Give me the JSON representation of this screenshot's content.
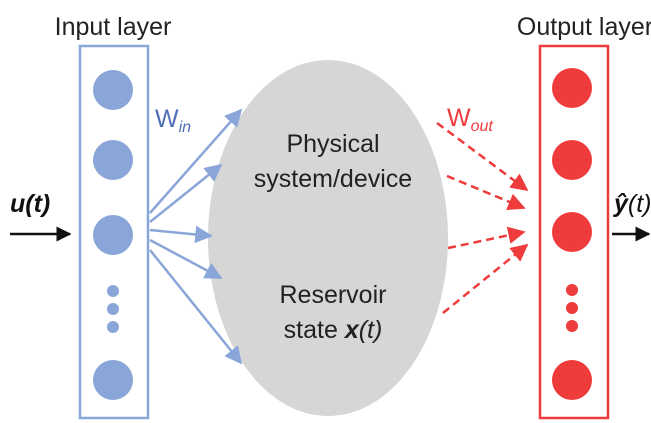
{
  "diagram": {
    "input_label": "Input layer",
    "output_label": "Output layer",
    "w_in": {
      "base": "W",
      "sub": "in"
    },
    "w_out": {
      "base": "W",
      "sub": "out"
    },
    "reservoir": {
      "line1": "Physical",
      "line2": "system/device",
      "line3": "Reservoir",
      "line4_prefix": "state ",
      "line4_var": "x",
      "line4_suffix": "(t)"
    },
    "input_signal": "u(t)",
    "output_signal": {
      "symbol": "ŷ",
      "suffix": "(t)"
    }
  },
  "colors": {
    "input": "#8aa6d8",
    "output": "#ee3c3c",
    "reservoir": "#d6d6d6",
    "text": "#222222",
    "w_in_text": "#4f6fb8"
  }
}
